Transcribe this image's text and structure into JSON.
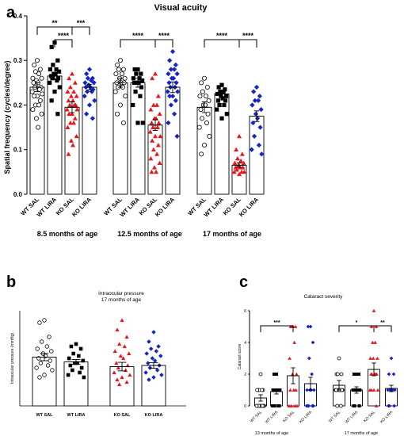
{
  "panel_labels": [
    "a",
    "b",
    "c"
  ],
  "colors": {
    "wt_sal": "#000000",
    "wt_lira": "#000000",
    "ko_sal": "#e8151b",
    "ko_lira": "#1424c8",
    "axis": "#000000",
    "bar_edge": "#000000"
  },
  "chart_data": [
    {
      "panel": "a",
      "type": "bar",
      "title": "Visual acuity",
      "ylabel": "Spatial frequency (cycles/degree)",
      "ylim": [
        0,
        0.4
      ],
      "yticks": [
        "0.0",
        "0.1",
        "0.2",
        "0.3",
        "0.4"
      ],
      "groups": [
        {
          "label": "8.5 months of age",
          "categories": [
            "WT SAL",
            "WT LIRA",
            "KO SAL",
            "KO LIRA"
          ],
          "means": [
            0.24,
            0.265,
            0.195,
            0.24
          ],
          "sem": [
            0.01,
            0.008,
            0.012,
            0.006
          ],
          "points": [
            [
              0.3,
              0.29,
              0.28,
              0.275,
              0.27,
              0.26,
              0.26,
              0.255,
              0.25,
              0.25,
              0.24,
              0.24,
              0.235,
              0.23,
              0.225,
              0.22,
              0.22,
              0.21,
              0.2,
              0.2,
              0.19,
              0.18,
              0.17,
              0.15
            ],
            [
              0.34,
              0.33,
              0.3,
              0.29,
              0.28,
              0.28,
              0.275,
              0.27,
              0.27,
              0.265,
              0.26,
              0.26,
              0.255,
              0.25,
              0.24,
              0.23,
              0.21,
              0.18
            ],
            [
              0.27,
              0.26,
              0.25,
              0.24,
              0.23,
              0.23,
              0.22,
              0.22,
              0.21,
              0.21,
              0.2,
              0.2,
              0.2,
              0.19,
              0.19,
              0.18,
              0.18,
              0.17,
              0.16,
              0.16,
              0.15,
              0.13,
              0.12,
              0.11,
              0.09
            ],
            [
              0.28,
              0.27,
              0.26,
              0.26,
              0.255,
              0.25,
              0.25,
              0.245,
              0.24,
              0.24,
              0.235,
              0.23,
              0.23,
              0.22,
              0.21,
              0.2,
              0.18,
              0.17
            ]
          ]
        },
        {
          "label": "12.5 months of age",
          "categories": [
            "WT SAL",
            "WT LIRA",
            "KO SAL",
            "KO LIRA"
          ],
          "means": [
            0.25,
            0.25,
            0.155,
            0.24
          ],
          "sem": [
            0.01,
            0.01,
            0.012,
            0.012
          ],
          "points": [
            [
              0.3,
              0.29,
              0.28,
              0.28,
              0.27,
              0.27,
              0.26,
              0.26,
              0.25,
              0.25,
              0.25,
              0.24,
              0.24,
              0.23,
              0.22,
              0.2,
              0.18,
              0.16
            ],
            [
              0.28,
              0.28,
              0.27,
              0.27,
              0.26,
              0.26,
              0.255,
              0.25,
              0.25,
              0.25,
              0.24,
              0.23,
              0.22,
              0.2,
              0.16,
              0.16
            ],
            [
              0.27,
              0.26,
              0.22,
              0.2,
              0.2,
              0.19,
              0.18,
              0.17,
              0.17,
              0.16,
              0.16,
              0.15,
              0.15,
              0.14,
              0.13,
              0.13,
              0.12,
              0.11,
              0.1,
              0.09,
              0.08,
              0.07,
              0.06,
              0.05,
              0.05
            ],
            [
              0.32,
              0.3,
              0.29,
              0.28,
              0.28,
              0.27,
              0.27,
              0.26,
              0.26,
              0.25,
              0.25,
              0.24,
              0.24,
              0.23,
              0.23,
              0.22,
              0.22,
              0.21,
              0.2,
              0.18,
              0.16,
              0.13
            ]
          ]
        },
        {
          "label": "17 months of age",
          "categories": [
            "WT SAL",
            "WT LIRA",
            "KO SAL",
            "KO LIRA"
          ],
          "means": [
            0.195,
            0.225,
            0.065,
            0.175
          ],
          "sem": [
            0.012,
            0.006,
            0.005,
            0.012
          ],
          "points": [
            [
              0.26,
              0.25,
              0.24,
              0.23,
              0.22,
              0.22,
              0.21,
              0.2,
              0.2,
              0.19,
              0.18,
              0.17,
              0.16,
              0.15,
              0.13,
              0.11,
              0.09
            ],
            [
              0.245,
              0.24,
              0.235,
              0.23,
              0.23,
              0.225,
              0.22,
              0.22,
              0.215,
              0.21,
              0.21,
              0.2,
              0.2,
              0.19,
              0.18,
              0.17
            ],
            [
              0.13,
              0.1,
              0.09,
              0.08,
              0.075,
              0.07,
              0.07,
              0.065,
              0.06,
              0.06,
              0.06,
              0.055,
              0.05,
              0.05,
              0.05,
              0.045
            ],
            [
              0.24,
              0.23,
              0.22,
              0.21,
              0.21,
              0.2,
              0.19,
              0.18,
              0.17,
              0.16,
              0.15,
              0.13,
              0.11,
              0.1,
              0.09
            ]
          ]
        }
      ],
      "significance": [
        {
          "group": 0,
          "from": 0,
          "to": 2,
          "label": "**"
        },
        {
          "group": 0,
          "from": 1,
          "to": 2,
          "label": "****"
        },
        {
          "group": 0,
          "from": 2,
          "to": 3,
          "label": "***"
        },
        {
          "group": 1,
          "from": 0,
          "to": 2,
          "label": "****"
        },
        {
          "group": 1,
          "from": 2,
          "to": 3,
          "label": "****"
        },
        {
          "group": 2,
          "from": 0,
          "to": 2,
          "label": "****"
        },
        {
          "group": 2,
          "from": 2,
          "to": 3,
          "label": "****"
        }
      ]
    },
    {
      "panel": "b",
      "type": "bar",
      "title_lines": [
        "Intraocular pressure",
        "17 months of age"
      ],
      "ylabel": "Intraocular pressure (mmHg)",
      "ylim": [
        0,
        40
      ],
      "categories": [
        "WT SAL",
        "WT LIRA",
        "KO SAL",
        "KO LIRA"
      ],
      "means": [
        20.5,
        18.5,
        16.5,
        17
      ],
      "sem": [
        1.5,
        1.0,
        1.8,
        1.2
      ],
      "points": [
        [
          36,
          35,
          29,
          27,
          25,
          24,
          23,
          22,
          21,
          20,
          19,
          18,
          17,
          16,
          15,
          13,
          12
        ],
        [
          26,
          25,
          24,
          22,
          21,
          20,
          19,
          18,
          18,
          17,
          16,
          15,
          14,
          13,
          12
        ],
        [
          36,
          32,
          29,
          26,
          25,
          23,
          22,
          21,
          20,
          18,
          17,
          16,
          15,
          14,
          13,
          12,
          11,
          10,
          9
        ],
        [
          31,
          27,
          25,
          24,
          23,
          22,
          21,
          20,
          19,
          18,
          17,
          16,
          15,
          14,
          13,
          12,
          11
        ]
      ]
    },
    {
      "panel": "c",
      "type": "bar",
      "title": "Cataract severity",
      "ylabel": "Cataract score",
      "ylim": [
        0,
        6
      ],
      "yticks": [
        "0",
        "2",
        "4",
        "6"
      ],
      "groups": [
        {
          "label": "13 months of age",
          "categories": [
            "WT SAL",
            "WT LIRA",
            "KO SAL",
            "KO LIRA"
          ],
          "means": [
            0.5,
            0.9,
            1.9,
            1.4
          ],
          "sem": [
            0.2,
            0.15,
            0.5,
            0.4
          ],
          "points": [
            [
              2,
              1,
              1,
              1,
              1,
              1,
              0,
              0,
              0,
              0,
              0,
              0,
              0,
              0
            ],
            [
              2,
              2,
              1,
              1,
              1,
              1,
              1,
              1,
              1,
              1,
              0,
              0,
              0,
              0
            ],
            [
              5,
              5,
              5,
              5,
              4,
              3,
              2,
              2,
              1,
              1,
              1,
              0,
              0,
              0,
              0
            ],
            [
              5,
              5,
              4,
              3,
              2,
              1,
              1,
              1,
              1,
              0,
              0,
              0,
              0,
              0
            ]
          ]
        },
        {
          "label": "17 months of age",
          "categories": [
            "WT SAL",
            "WT LIRA",
            "KO SAL",
            "KO LIRA"
          ],
          "means": [
            1.3,
            1.0,
            2.3,
            1.1
          ],
          "sem": [
            0.3,
            0.2,
            0.4,
            0.2
          ],
          "points": [
            [
              3,
              2,
              2,
              2,
              1,
              1,
              1,
              1,
              1,
              1,
              1,
              0,
              0
            ],
            [
              2,
              2,
              2,
              1,
              1,
              1,
              1,
              1,
              1,
              0,
              0,
              0
            ],
            [
              6,
              5,
              5,
              4,
              4,
              3,
              3,
              3,
              2,
              2,
              2,
              2,
              2,
              1,
              1,
              1,
              1,
              0
            ],
            [
              3,
              2,
              2,
              1,
              1,
              1,
              1,
              1,
              1,
              0,
              0,
              0
            ]
          ]
        }
      ],
      "significance": [
        {
          "group": 0,
          "from": 0,
          "to": 2,
          "label": "***"
        },
        {
          "group": 1,
          "from": 0,
          "to": 2,
          "label": "*"
        },
        {
          "group": 1,
          "from": 2,
          "to": 3,
          "label": "**"
        }
      ]
    }
  ]
}
